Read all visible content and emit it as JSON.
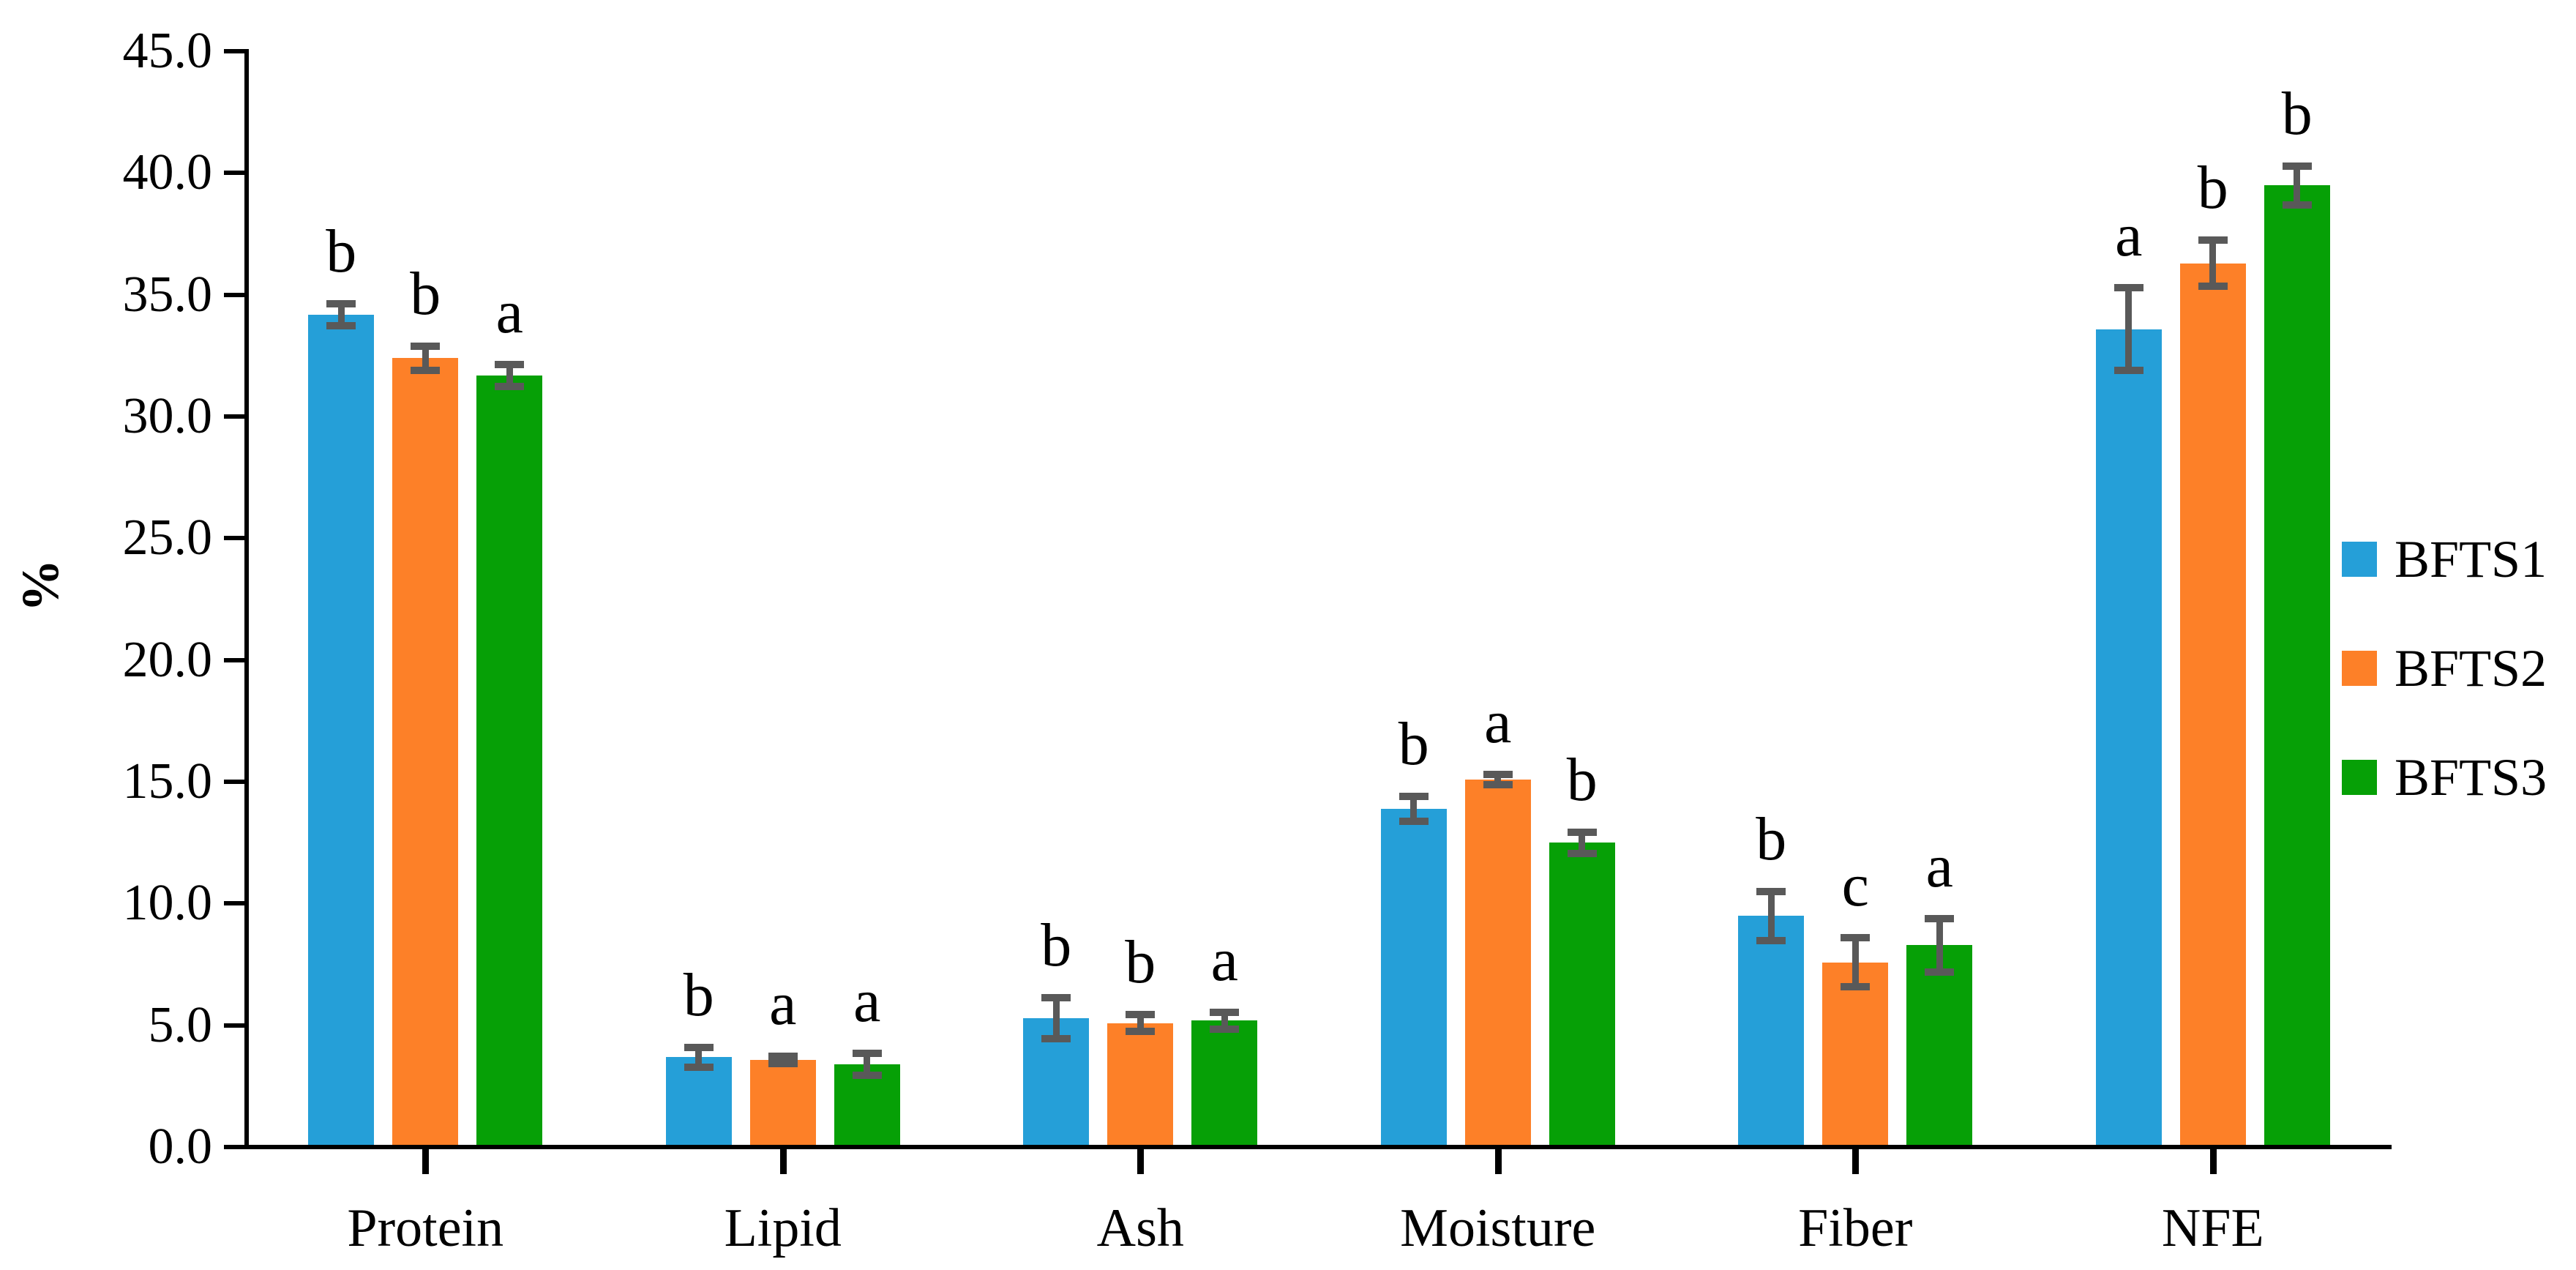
{
  "figure": {
    "ylabel": "%",
    "background_color": "#ffffff",
    "text_color": "#000000",
    "error_bar_color": "#595959",
    "axis_color": "#000000"
  },
  "y_axis": {
    "tick_labels": [
      "45.0",
      "40.0",
      "35.0",
      "30.0",
      "25.0",
      "20.0",
      "15.0",
      "10.0",
      "5.0",
      "0.0"
    ],
    "min": 0,
    "max": 45,
    "step": 5
  },
  "legend": {
    "position": "right",
    "items": [
      {
        "label": "BFTS1",
        "color": "#259FD8"
      },
      {
        "label": "BFTS2",
        "color": "#FD8028"
      },
      {
        "label": "BFTS3",
        "color": "#06A006"
      }
    ]
  },
  "chart_data": {
    "type": "bar",
    "title": "",
    "xlabel": "",
    "ylabel": "%",
    "ylim": [
      0,
      45
    ],
    "grid": false,
    "legend_position": "right",
    "categories": [
      "Protein",
      "Lipid",
      "Ash",
      "Moisture",
      "Fiber",
      "NFE"
    ],
    "series": [
      {
        "name": "BFTS1",
        "color": "#259FD8",
        "values": [
          34.1,
          3.6,
          5.2,
          13.8,
          9.4,
          33.5
        ],
        "errors": [
          0.45,
          0.4,
          0.85,
          0.5,
          1.0,
          1.7
        ],
        "sig_letters": [
          "b",
          "b",
          "b",
          "b",
          "b",
          "a"
        ]
      },
      {
        "name": "BFTS2",
        "color": "#FD8028",
        "values": [
          32.3,
          3.5,
          5.0,
          15.0,
          7.5,
          36.2
        ],
        "errors": [
          0.5,
          0.15,
          0.35,
          0.2,
          1.0,
          0.95
        ],
        "sig_letters": [
          "b",
          "a",
          "b",
          "a",
          "c",
          "b"
        ]
      },
      {
        "name": "BFTS3",
        "color": "#06A006",
        "values": [
          31.6,
          3.3,
          5.1,
          12.4,
          8.2,
          39.4
        ],
        "errors": [
          0.45,
          0.45,
          0.35,
          0.45,
          1.1,
          0.8
        ],
        "sig_letters": [
          "a",
          "a",
          "a",
          "b",
          "a",
          "b"
        ]
      }
    ]
  }
}
